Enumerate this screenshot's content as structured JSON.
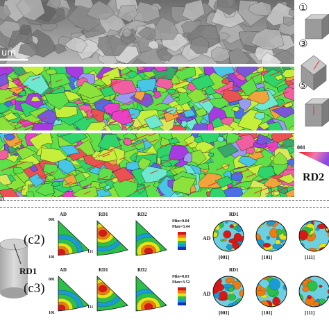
{
  "figure": {
    "sem_scale_label": "um",
    "panel_d_label": "D",
    "cube_numbers": [
      "①",
      "③",
      "⑤"
    ],
    "ipf_key_corner": "001",
    "ipf_key_direction": "RD2",
    "rows": [
      {
        "label": "(c2)",
        "pf_titles": [
          "AD",
          "RD1",
          "RD2"
        ],
        "min_label": "Min=0.04",
        "max_label": "Max=3.44",
        "triangle_corners": [
          "001",
          "101",
          "111"
        ],
        "pole_label_top": "RD1",
        "pole_label_left": "AD",
        "poles": [
          "[001]",
          "[101]",
          "[111]"
        ]
      },
      {
        "label": "(c3)",
        "pf_titles": [
          "AD",
          "RD1",
          "RD2"
        ],
        "min_label": "Min=0.03",
        "max_label": "Max=3.52",
        "triangle_corners": [
          "001",
          "101",
          "111"
        ],
        "pole_label_top": "RD1",
        "pole_label_left": "AD",
        "poles": [
          "[001]",
          "[101]",
          "[111]"
        ]
      }
    ],
    "sample_label": "RD1",
    "colorbar_colors": [
      "#1a2fbf",
      "#1a9ad6",
      "#2cc04a",
      "#e6e21a",
      "#f07a10",
      "#d81818"
    ],
    "ebsd_palette": [
      "#5ee04a",
      "#2fd46a",
      "#8be23a",
      "#c6ef3c",
      "#e940c6",
      "#a53be0",
      "#4c6fe8",
      "#47c6e6",
      "#6ee8d0",
      "#f2a43c",
      "#e85252",
      "#9a9af0",
      "#3aa86a",
      "#d8e85a",
      "#f060a0",
      "#7a56d8"
    ]
  }
}
